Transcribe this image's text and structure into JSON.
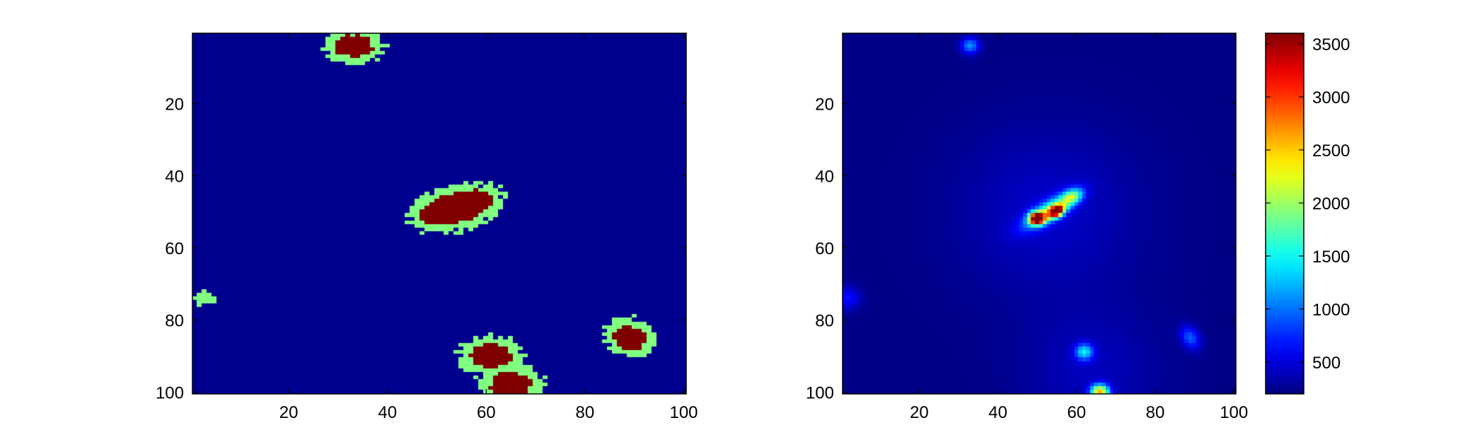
{
  "chart_data": [
    {
      "type": "heatmap",
      "title": "",
      "xlabel": "",
      "ylabel": "",
      "xlim": [
        0.5,
        100.5
      ],
      "ylim": [
        0.5,
        100.5
      ],
      "y_reversed": true,
      "x_ticks": [
        20,
        40,
        60,
        80,
        100
      ],
      "y_ticks": [
        20,
        40,
        60,
        80,
        100
      ],
      "x_tick_labels": [
        "20",
        "40",
        "60",
        "80",
        "100"
      ],
      "y_tick_labels": [
        "20",
        "40",
        "60",
        "80",
        "100"
      ],
      "grid": false,
      "colormap": "segmentation-3-level",
      "level_colors": [
        "#00008f",
        "#80ff80",
        "#800000"
      ],
      "background_level": 0,
      "blobs": [
        {
          "cx": 33,
          "cy": 4,
          "rx": 4.0,
          "ry": 3.2,
          "angle": 0,
          "halo": 2.2
        },
        {
          "cx": 54,
          "cy": 49,
          "rx": 8.0,
          "ry": 4.0,
          "angle": -22,
          "halo": 2.4
        },
        {
          "cx": 89,
          "cy": 85,
          "rx": 3.0,
          "ry": 3.6,
          "angle": -35,
          "halo": 2.2
        },
        {
          "cx": 61,
          "cy": 90,
          "rx": 4.2,
          "ry": 3.2,
          "angle": 0,
          "halo": 2.4
        },
        {
          "cx": 65,
          "cy": 98,
          "rx": 4.0,
          "ry": 3.6,
          "angle": 0,
          "halo": 2.6
        },
        {
          "cx": 3,
          "cy": 74,
          "rx": 0.0,
          "ry": 0.0,
          "angle": 0,
          "halo": 2.0
        }
      ]
    },
    {
      "type": "heatmap",
      "title": "",
      "xlabel": "",
      "ylabel": "",
      "xlim": [
        0.5,
        100.5
      ],
      "ylim": [
        0.5,
        100.5
      ],
      "y_reversed": true,
      "x_ticks": [
        20,
        40,
        60,
        80,
        100
      ],
      "y_ticks": [
        20,
        40,
        60,
        80,
        100
      ],
      "x_tick_labels": [
        "20",
        "40",
        "60",
        "80",
        "100"
      ],
      "y_tick_labels": [
        "20",
        "40",
        "60",
        "80",
        "100"
      ],
      "grid": false,
      "colormap": "jet",
      "clim": [
        200,
        3600
      ],
      "background_value": 220,
      "colorbar": {
        "ticks": [
          500,
          1000,
          1500,
          2000,
          2500,
          3000,
          3500
        ],
        "tick_labels": [
          "500",
          "1000",
          "1500",
          "2000",
          "2500",
          "3000",
          "3500"
        ]
      },
      "peaks": [
        {
          "cx": 33,
          "cy": 4,
          "amp": 900,
          "sx": 1.6,
          "sy": 1.6,
          "angle": 0
        },
        {
          "cx": 50,
          "cy": 52,
          "amp": 3350,
          "sx": 1.3,
          "sy": 1.1,
          "angle": 0
        },
        {
          "cx": 55,
          "cy": 50,
          "amp": 2900,
          "sx": 1.5,
          "sy": 1.0,
          "angle": -30
        },
        {
          "cx": 53,
          "cy": 50,
          "amp": 1500,
          "sx": 5.0,
          "sy": 1.8,
          "angle": -35
        },
        {
          "cx": 59,
          "cy": 46,
          "amp": 1300,
          "sx": 2.0,
          "sy": 1.4,
          "angle": -35
        },
        {
          "cx": 53,
          "cy": 50,
          "amp": 220,
          "sx": 16.0,
          "sy": 16.0,
          "angle": 0
        },
        {
          "cx": 62,
          "cy": 89,
          "amp": 1100,
          "sx": 1.6,
          "sy": 1.6,
          "angle": 0
        },
        {
          "cx": 66,
          "cy": 100,
          "amp": 2200,
          "sx": 1.6,
          "sy": 1.4,
          "angle": 0
        },
        {
          "cx": 89,
          "cy": 85,
          "amp": 700,
          "sx": 1.6,
          "sy": 2.4,
          "angle": -25
        },
        {
          "cx": 2,
          "cy": 74,
          "amp": 450,
          "sx": 2.2,
          "sy": 2.2,
          "angle": 0
        },
        {
          "cx": 64,
          "cy": 94,
          "amp": 180,
          "sx": 12.0,
          "sy": 12.0,
          "angle": 0
        }
      ]
    }
  ]
}
